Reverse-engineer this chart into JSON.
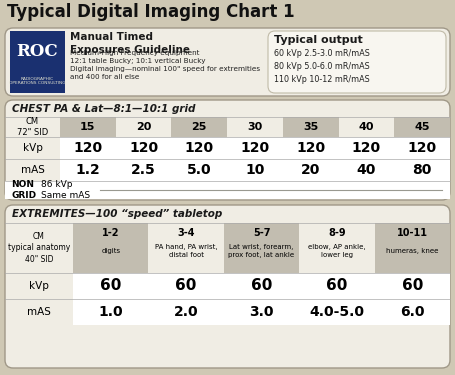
{
  "title": "Typical Digital Imaging Chart 1",
  "header_left_bold": "Manual Timed\nExposures Guideline",
  "header_left_small": "Medium-High Frequency equipment\n12:1 table Bucky; 10:1 vertical Bucky\nDigital imaging—nominal 100\" speed for extremities\nand 400 for all else",
  "header_right_title": "Typical output",
  "header_right_lines": [
    "60 kVp 2.5-3.0 mR/mAS",
    "80 kVp 5.0-6.0 mR/mAS",
    "110 kVp 10-12 mR/mAS"
  ],
  "chest_title": "CHEST PA & Lat—8:1—10:1 grid",
  "chest_cm_label": "CM\n72\" SID",
  "chest_cm_values": [
    "15",
    "20",
    "25",
    "30",
    "35",
    "40",
    "45"
  ],
  "chest_kvp_label": "kVp",
  "chest_kvp_values": [
    "120",
    "120",
    "120",
    "120",
    "120",
    "120",
    "120"
  ],
  "chest_mas_label": "mAS",
  "chest_mas_values": [
    "1.2",
    "2.5",
    "5.0",
    "10",
    "20",
    "40",
    "80"
  ],
  "chest_non_grid_label": "NON\nGRID",
  "chest_non_grid_val": "86 kVp\nSame mAS",
  "ext_title": "EXTREMITES—100 “speed” tabletop",
  "ext_cm_label": "CM\ntypical anatomy\n40\" SID",
  "ext_col_headers_top": [
    "1-2",
    "3-4",
    "5-7",
    "8-9",
    "10-11"
  ],
  "ext_col_headers_bot": [
    "digits",
    "PA hand, PA wrist,\ndistal foot",
    "Lat wrist, forearm,\nprox foot, lat ankle",
    "elbow, AP ankle,\nlower leg",
    "humeras, knee"
  ],
  "ext_kvp_label": "kVp",
  "ext_kvp_values": [
    "60",
    "60",
    "60",
    "60",
    "60"
  ],
  "ext_mas_label": "mAS",
  "ext_mas_values": [
    "1.0",
    "2.0",
    "3.0",
    "4.0-5.0",
    "6.0"
  ],
  "bg_color": "#cfc8b4",
  "panel_bg": "#f0ede4",
  "gray_cell": "#c2bdb0",
  "white_cell": "#ffffff",
  "blue_logo_top": "#1a3070",
  "blue_logo_bot": "#1a5090",
  "text_dark": "#1a1a1a",
  "text_medium": "#333333",
  "border_color": "#a09888"
}
